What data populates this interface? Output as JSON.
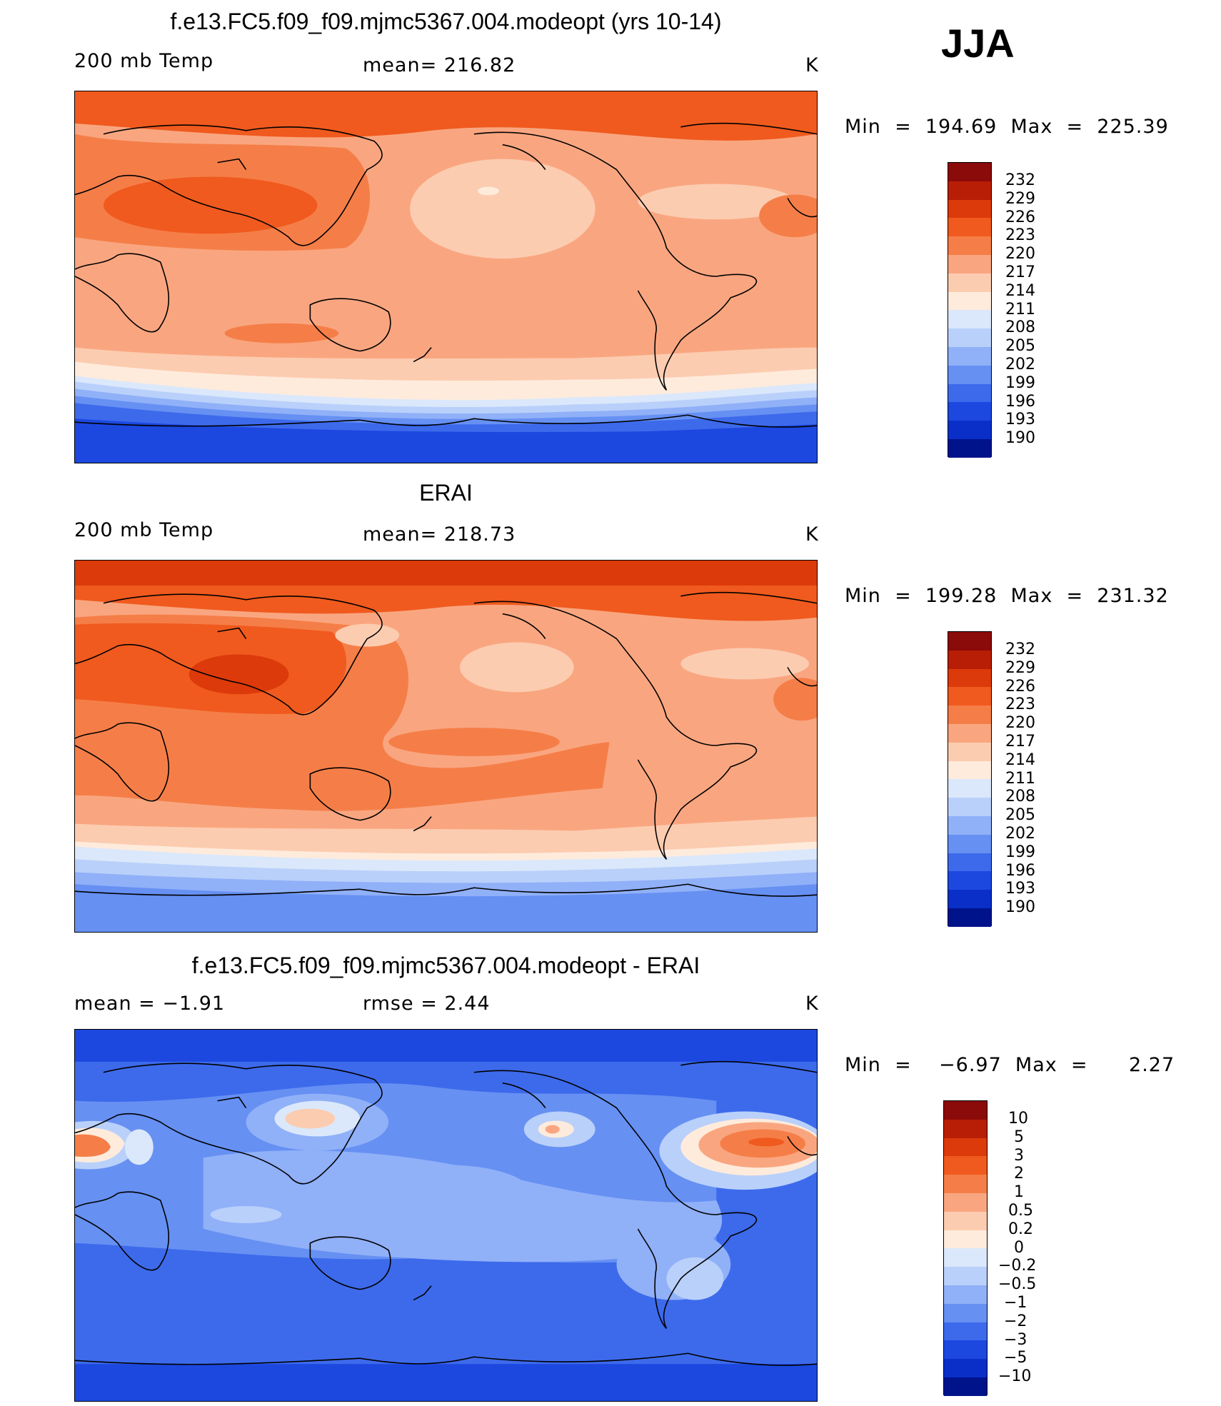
{
  "season": "JJA",
  "panels": [
    {
      "title": "f.e13.FC5.f09_f09.mjmc5367.004.modeopt (yrs 10-14)",
      "left_label": "200 mb Temp",
      "center_label": "mean= 216.82",
      "units": "K",
      "min_max": "Min  =  194.69  Max  =  225.39",
      "colorbar_labels": [
        "232",
        "229",
        "226",
        "223",
        "220",
        "217",
        "214",
        "211",
        "208",
        "205",
        "202",
        "199",
        "196",
        "193",
        "190"
      ]
    },
    {
      "title": "ERAI",
      "left_label": "200 mb Temp",
      "center_label": "mean= 218.73",
      "units": "K",
      "min_max": "Min  =  199.28  Max  =  231.32",
      "colorbar_labels": [
        "232",
        "229",
        "226",
        "223",
        "220",
        "217",
        "214",
        "211",
        "208",
        "205",
        "202",
        "199",
        "196",
        "193",
        "190"
      ]
    },
    {
      "title": "f.e13.FC5.f09_f09.mjmc5367.004.modeopt - ERAI",
      "left_label": "mean  =    −1.91",
      "center_label": "rmse  =     2.44",
      "units": "K",
      "min_max": "Min  =    −6.97  Max  =      2.27",
      "colorbar_labels": [
        "10",
        "5",
        "3",
        "2",
        "1",
        "0.5",
        "0.2",
        "0",
        "−0.2",
        "−0.5",
        "−1",
        "−2",
        "−3",
        "−5",
        "−10"
      ]
    }
  ],
  "colors": {
    "palette": [
      "#8b0a0a",
      "#b81e06",
      "#dc3a0a",
      "#f05a1e",
      "#f57e48",
      "#f9a680",
      "#fcccb0",
      "#feebdc",
      "#dbe8fb",
      "#b9d0fa",
      "#90b0f8",
      "#6690f2",
      "#3d6aeb",
      "#1c48e0",
      "#0a2fc8",
      "#00138a"
    ]
  },
  "chart_data": {
    "type": "heatmap",
    "maps": [
      {
        "name": "model",
        "variable": "200 mb Temp",
        "units": "K",
        "mean": 216.82,
        "min": 194.69,
        "max": 225.39,
        "contour_levels": [
          190,
          193,
          196,
          199,
          202,
          205,
          208,
          211,
          214,
          217,
          220,
          223,
          226,
          229,
          232
        ]
      },
      {
        "name": "ERAI",
        "variable": "200 mb Temp",
        "units": "K",
        "mean": 218.73,
        "min": 199.28,
        "max": 231.32,
        "contour_levels": [
          190,
          193,
          196,
          199,
          202,
          205,
          208,
          211,
          214,
          217,
          220,
          223,
          226,
          229,
          232
        ]
      },
      {
        "name": "difference",
        "units": "K",
        "mean": -1.91,
        "rmse": 2.44,
        "min": -6.97,
        "max": 2.27,
        "contour_levels": [
          -10,
          -5,
          -3,
          -2,
          -1,
          -0.5,
          -0.2,
          0,
          0.2,
          0.5,
          1,
          2,
          3,
          5,
          10
        ]
      }
    ]
  }
}
